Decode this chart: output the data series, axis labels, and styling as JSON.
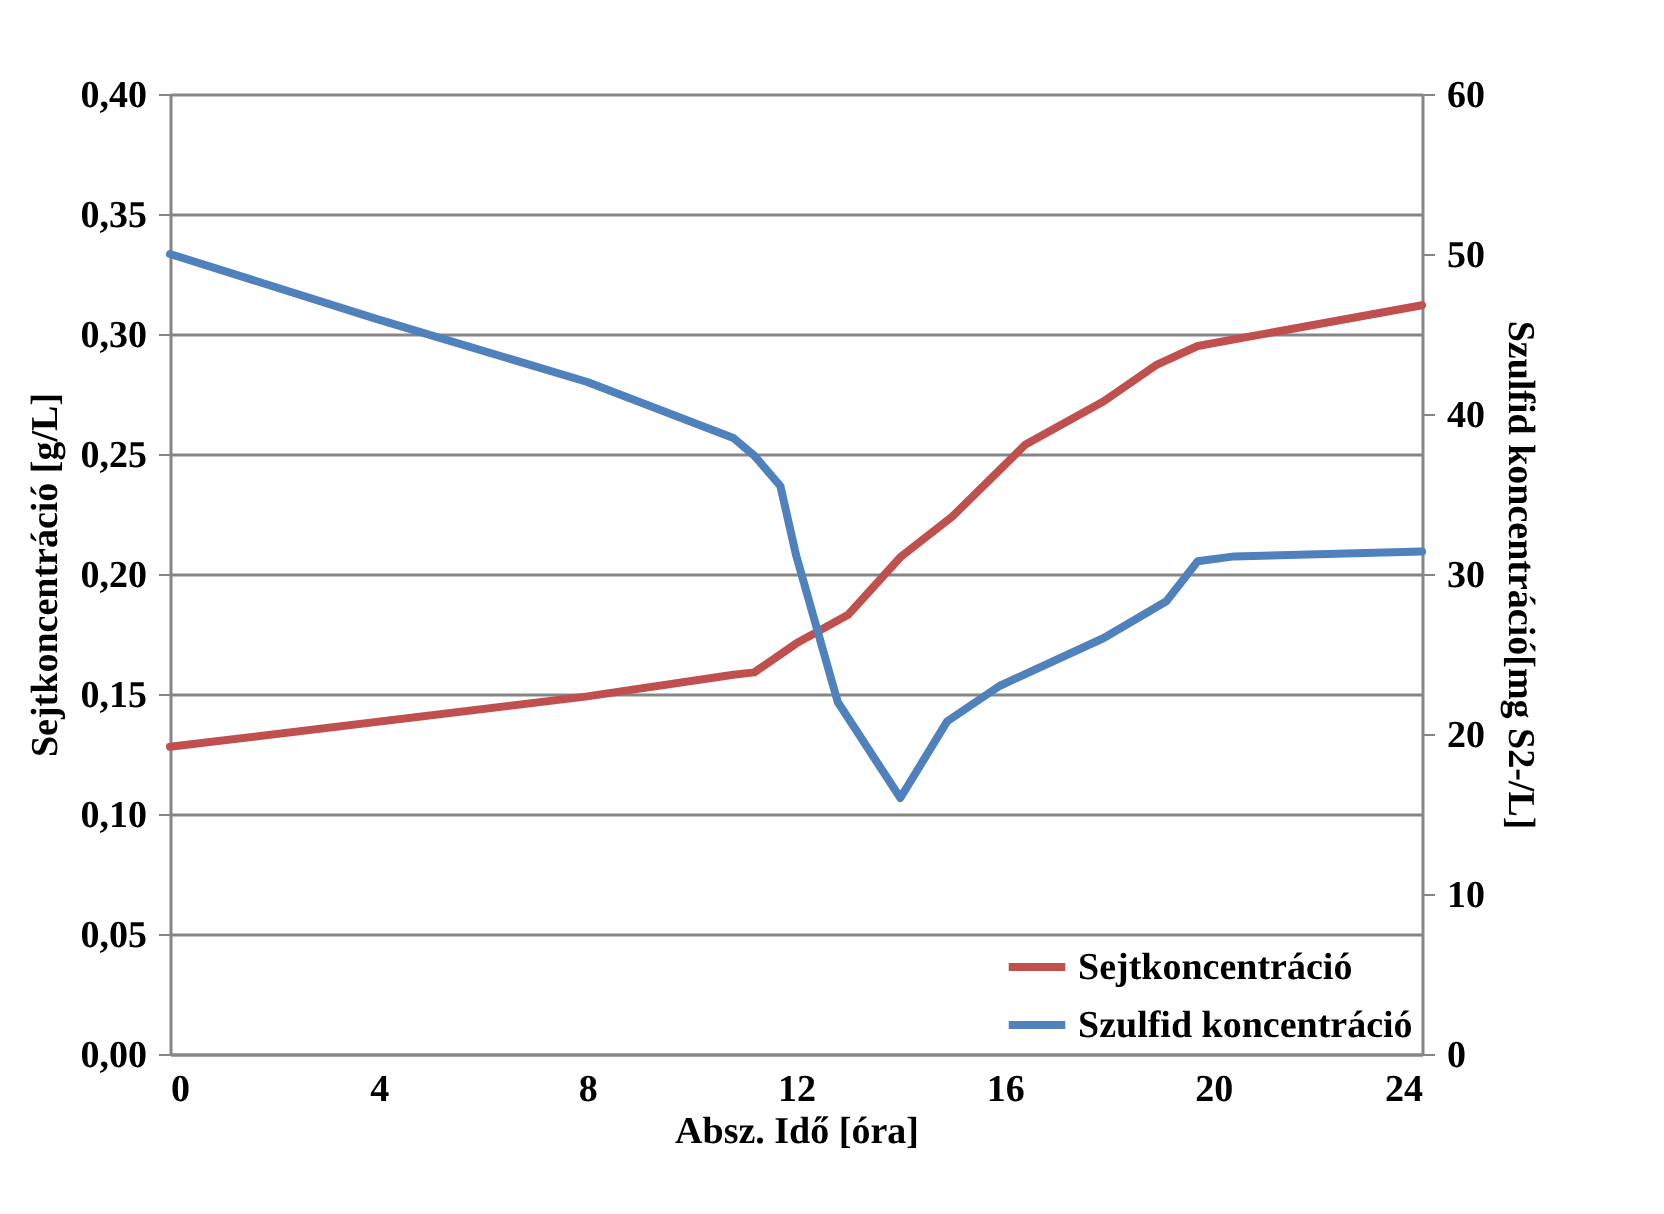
{
  "chart_data": {
    "type": "line",
    "xlabel": "Absz. Idő [óra]",
    "ylabel": "Sejtkoncentráció [g/L]",
    "y2label": "Szulfid koncentráció[mg S2-/L]",
    "xlim": [
      0,
      24
    ],
    "xticks": [
      0,
      4,
      8,
      12,
      16,
      20,
      24
    ],
    "ylim": [
      0,
      0.4
    ],
    "yticks": [
      {
        "value": 0,
        "label": "0,00"
      },
      {
        "value": 0.05,
        "label": "0,05"
      },
      {
        "value": 0.1,
        "label": "0,10"
      },
      {
        "value": 0.15,
        "label": "0,15"
      },
      {
        "value": 0.2,
        "label": "0,20"
      },
      {
        "value": 0.25,
        "label": "0,25"
      },
      {
        "value": 0.3,
        "label": "0,30"
      },
      {
        "value": 0.35,
        "label": "0,35"
      },
      {
        "value": 0.4,
        "label": "0,40"
      }
    ],
    "y2lim": [
      0,
      60
    ],
    "y2ticks": [
      0,
      10,
      20,
      30,
      40,
      50,
      60
    ],
    "grid": "y",
    "legend": "bottom right",
    "line_style": "solid",
    "series": [
      {
        "name": "Sejtkoncentráció",
        "color": "#c0504d",
        "x": [
          0,
          8,
          10.8,
          11.2,
          12,
          13,
          14,
          15,
          16.4,
          17.9,
          18.9,
          19.7,
          24
        ],
        "values": [
          0.128,
          0.149,
          0.158,
          0.159,
          0.171,
          0.183,
          0.207,
          0.224,
          0.254,
          0.272,
          0.287,
          0.295,
          0.312
        ]
      },
      {
        "name": "Szulfid koncentráció",
        "color": "#4f81bd",
        "axis": "y2",
        "x": [
          0,
          4,
          8,
          10.8,
          11.2,
          11.7,
          12,
          12.8,
          14,
          14.9,
          15.9,
          17.9,
          19.1,
          19.7,
          20.4,
          24
        ],
        "values": [
          50.0,
          45.9,
          42.0,
          38.5,
          37.4,
          35.5,
          31.2,
          22.0,
          16.0,
          20.8,
          23.0,
          26.0,
          28.3,
          30.8,
          31.1,
          31.4
        ]
      }
    ]
  }
}
